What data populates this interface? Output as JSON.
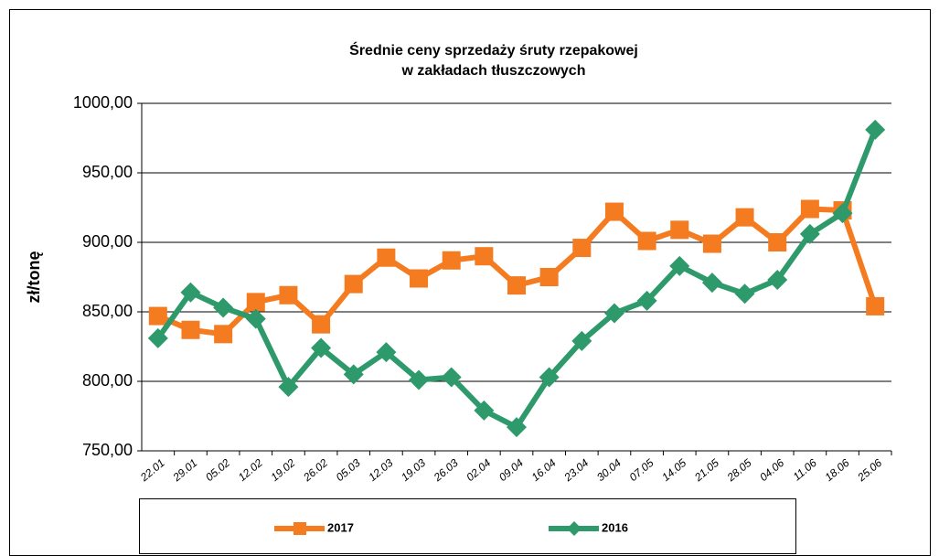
{
  "chart_data": {
    "type": "line",
    "title": "Średnie ceny sprzedaży śruty rzepakowej",
    "subtitle": "w zakładach tłuszczowych",
    "y_label": "zł/tonę",
    "categories": [
      "22.01",
      "29.01",
      "05.02",
      "12.02",
      "19.02",
      "26.02",
      "05.03",
      "12.03",
      "19.03",
      "26.03",
      "02.04",
      "09.04",
      "16.04",
      "23.04",
      "30.04",
      "07.05",
      "14.05",
      "21.05",
      "28.05",
      "04.06",
      "11.06",
      "18.06",
      "25.06"
    ],
    "series": [
      {
        "name": "2017",
        "color": "#f47b20",
        "marker": "square",
        "values": [
          847,
          837,
          834,
          857,
          862,
          841,
          870,
          889,
          874,
          887,
          890,
          869,
          875,
          896,
          922,
          901,
          909,
          899,
          918,
          900,
          924,
          923,
          854
        ]
      },
      {
        "name": "2016",
        "color": "#2e9a6b",
        "marker": "diamond",
        "values": [
          831,
          864,
          853,
          845,
          796,
          824,
          805,
          821,
          801,
          803,
          779,
          767,
          803,
          829,
          849,
          858,
          883,
          871,
          863,
          873,
          906,
          921,
          981
        ]
      }
    ],
    "ylim": [
      750,
      1000
    ],
    "yticks": [
      {
        "value": 750,
        "label": "750,00"
      },
      {
        "value": 800,
        "label": "800,00"
      },
      {
        "value": 850,
        "label": "850,00"
      },
      {
        "value": 900,
        "label": "900,00"
      },
      {
        "value": 950,
        "label": "950,00"
      },
      {
        "value": 1000,
        "label": "1000,00"
      }
    ],
    "grid": true
  }
}
